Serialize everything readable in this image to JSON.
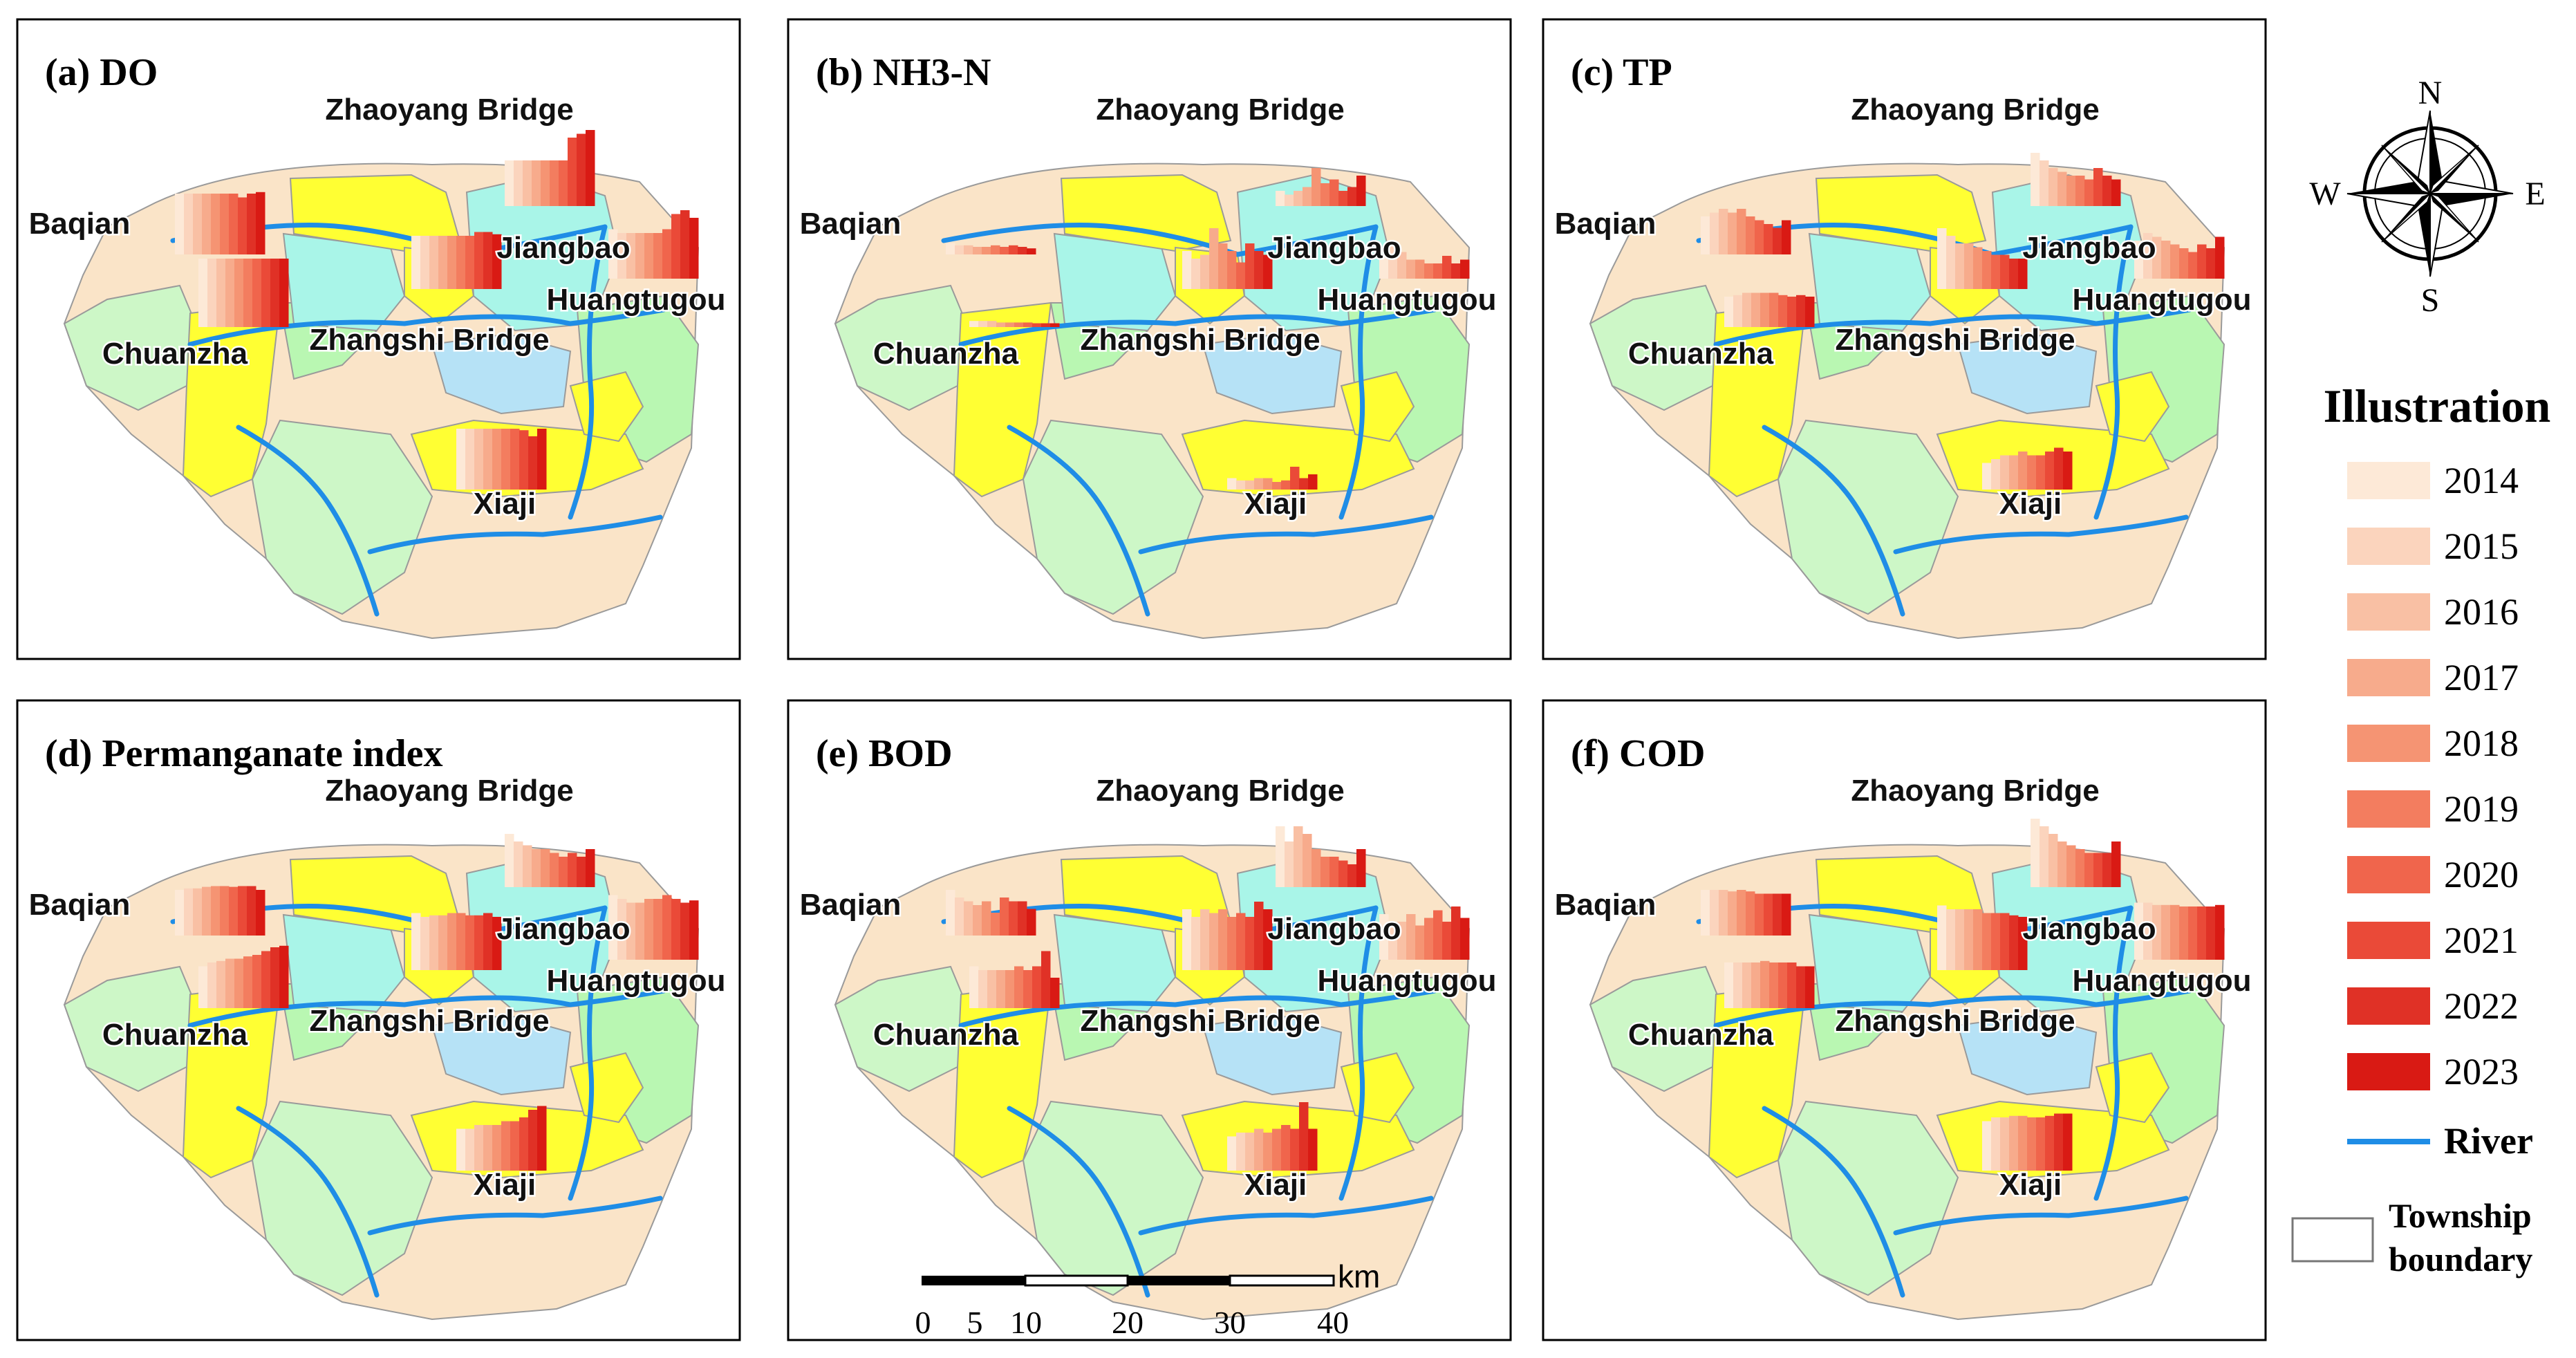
{
  "panels": [
    {
      "id": "a",
      "title": "(a)  DO",
      "bars": {
        "Baqian": [
          0.8,
          0.8,
          0.8,
          0.8,
          0.8,
          0.8,
          0.8,
          0.75,
          0.8,
          0.82
        ],
        "Chuanzha": [
          0.9,
          0.9,
          0.9,
          0.9,
          0.9,
          0.9,
          0.9,
          0.9,
          0.9,
          0.9
        ],
        "Zhaoyang Bridge": [
          0.6,
          0.6,
          0.6,
          0.6,
          0.6,
          0.6,
          0.6,
          0.9,
          0.95,
          1.0
        ],
        "Jiangbao": [
          0.7,
          0.7,
          0.7,
          0.7,
          0.7,
          0.7,
          0.7,
          0.75,
          0.75,
          0.72
        ],
        "Huangtugou": [
          0.65,
          0.6,
          0.6,
          0.6,
          0.6,
          0.6,
          0.65,
          0.85,
          0.9,
          0.8
        ],
        "Xiaji": [
          0.8,
          0.8,
          0.8,
          0.8,
          0.8,
          0.8,
          0.8,
          0.78,
          0.7,
          0.8
        ]
      }
    },
    {
      "id": "b",
      "title": "(b)  NH3-N",
      "bars": {
        "Baqian": [
          0.15,
          0.12,
          0.12,
          0.1,
          0.1,
          0.12,
          0.1,
          0.12,
          0.1,
          0.08
        ],
        "Chuanzha": [
          0.08,
          0.08,
          0.08,
          0.06,
          0.06,
          0.06,
          0.06,
          0.05,
          0.05,
          0.05
        ],
        "Zhaoyang Bridge": [
          0.2,
          0.15,
          0.2,
          0.25,
          0.5,
          0.3,
          0.35,
          0.2,
          0.25,
          0.4
        ],
        "Jiangbao": [
          0.5,
          0.4,
          0.45,
          0.8,
          0.6,
          0.5,
          0.35,
          0.6,
          0.5,
          0.45
        ],
        "Huangtugou": [
          0.3,
          0.5,
          0.35,
          0.25,
          0.25,
          0.2,
          0.2,
          0.3,
          0.2,
          0.25
        ],
        "Xiaji": [
          0.15,
          0.12,
          0.12,
          0.15,
          0.15,
          0.1,
          0.12,
          0.3,
          0.15,
          0.2
        ]
      }
    },
    {
      "id": "c",
      "title": "(c)  TP",
      "bars": {
        "Baqian": [
          0.5,
          0.55,
          0.6,
          0.55,
          0.6,
          0.5,
          0.45,
          0.4,
          0.35,
          0.45
        ],
        "Chuanzha": [
          0.4,
          0.42,
          0.45,
          0.45,
          0.45,
          0.45,
          0.42,
          0.4,
          0.42,
          0.4
        ],
        "Zhaoyang Bridge": [
          0.7,
          0.6,
          0.5,
          0.45,
          0.4,
          0.4,
          0.35,
          0.5,
          0.4,
          0.35
        ],
        "Jiangbao": [
          0.8,
          0.7,
          0.6,
          0.6,
          0.55,
          0.5,
          0.45,
          0.45,
          0.4,
          0.4
        ],
        "Huangtugou": [
          0.5,
          0.6,
          0.55,
          0.5,
          0.45,
          0.4,
          0.35,
          0.45,
          0.4,
          0.55
        ],
        "Xiaji": [
          0.35,
          0.4,
          0.45,
          0.45,
          0.5,
          0.45,
          0.45,
          0.5,
          0.55,
          0.5
        ]
      }
    },
    {
      "id": "d",
      "title": "(d)  Permanganate index",
      "bars": {
        "Baqian": [
          0.6,
          0.62,
          0.62,
          0.64,
          0.65,
          0.65,
          0.64,
          0.65,
          0.65,
          0.6
        ],
        "Chuanzha": [
          0.55,
          0.6,
          0.62,
          0.65,
          0.65,
          0.68,
          0.7,
          0.75,
          0.8,
          0.82
        ],
        "Zhaoyang Bridge": [
          0.7,
          0.6,
          0.55,
          0.5,
          0.5,
          0.45,
          0.4,
          0.45,
          0.4,
          0.5
        ],
        "Jiangbao": [
          0.75,
          0.7,
          0.72,
          0.72,
          0.75,
          0.75,
          0.72,
          0.72,
          0.75,
          0.7
        ],
        "Huangtugou": [
          0.85,
          0.8,
          0.75,
          0.75,
          0.8,
          0.8,
          0.85,
          0.8,
          0.75,
          0.78
        ],
        "Xiaji": [
          0.55,
          0.55,
          0.6,
          0.6,
          0.6,
          0.65,
          0.65,
          0.7,
          0.8,
          0.85
        ]
      }
    },
    {
      "id": "e",
      "title": "(e)  BOD",
      "bars": {
        "Baqian": [
          0.6,
          0.5,
          0.45,
          0.4,
          0.45,
          0.3,
          0.5,
          0.45,
          0.45,
          0.35
        ],
        "Chuanzha": [
          0.55,
          0.5,
          0.5,
          0.5,
          0.5,
          0.55,
          0.5,
          0.55,
          0.75,
          0.4
        ],
        "Zhaoyang Bridge": [
          0.8,
          0.6,
          0.8,
          0.7,
          0.5,
          0.4,
          0.4,
          0.35,
          0.3,
          0.5
        ],
        "Jiangbao": [
          0.8,
          0.7,
          0.8,
          0.75,
          0.8,
          0.7,
          0.75,
          0.7,
          0.9,
          0.8
        ],
        "Huangtugou": [
          0.6,
          0.5,
          0.5,
          0.6,
          0.45,
          0.55,
          0.65,
          0.5,
          0.7,
          0.55
        ],
        "Xiaji": [
          0.45,
          0.5,
          0.5,
          0.55,
          0.5,
          0.55,
          0.6,
          0.55,
          0.9,
          0.55
        ]
      }
    },
    {
      "id": "f",
      "title": "(f)  COD",
      "bars": {
        "Baqian": [
          0.6,
          0.6,
          0.6,
          0.58,
          0.6,
          0.58,
          0.55,
          0.55,
          0.55,
          0.55
        ],
        "Chuanzha": [
          0.6,
          0.6,
          0.6,
          0.6,
          0.62,
          0.6,
          0.6,
          0.6,
          0.55,
          0.55
        ],
        "Zhaoyang Bridge": [
          0.9,
          0.8,
          0.7,
          0.6,
          0.55,
          0.5,
          0.45,
          0.45,
          0.45,
          0.6
        ],
        "Jiangbao": [
          0.85,
          0.8,
          0.8,
          0.8,
          0.8,
          0.75,
          0.75,
          0.75,
          0.72,
          0.7
        ],
        "Huangtugou": [
          0.75,
          0.75,
          0.72,
          0.72,
          0.72,
          0.7,
          0.7,
          0.7,
          0.7,
          0.72
        ],
        "Xiaji": [
          0.65,
          0.7,
          0.7,
          0.72,
          0.72,
          0.7,
          0.7,
          0.72,
          0.75,
          0.75
        ]
      }
    }
  ],
  "stations": [
    "Zhaoyang Bridge",
    "Baqian",
    "Jiangbao",
    "Huangtugou",
    "Chuanzha",
    "Zhangshi Bridge",
    "Xiaji"
  ],
  "compass": {
    "n": "N",
    "s": "S",
    "e": "E",
    "w": "W"
  },
  "legend": {
    "title": "Illustration",
    "years": [
      "2014",
      "2015",
      "2016",
      "2017",
      "2018",
      "2019",
      "2020",
      "2021",
      "2022",
      "2023"
    ],
    "year_colors": [
      "#fde9d7",
      "#fbd4bd",
      "#f9c0a4",
      "#f7ab8c",
      "#f59473",
      "#f37d5f",
      "#f0654c",
      "#ea4a38",
      "#e03126",
      "#d91a14"
    ],
    "river_label": "River",
    "river_color": "#1f8de6",
    "boundary_label_1": "Township",
    "boundary_label_2": "boundary"
  },
  "scalebar": {
    "unit": "km",
    "ticks": [
      "0",
      "5",
      "10",
      "20",
      "30",
      "40"
    ]
  },
  "colors": {
    "yellow": "#ffff33",
    "cyan": "#a9f5e8",
    "light_blue": "#b6e2f6",
    "green": "#b9f7b2",
    "light_green": "#cdf7c7",
    "tan": "#fae4c8"
  }
}
